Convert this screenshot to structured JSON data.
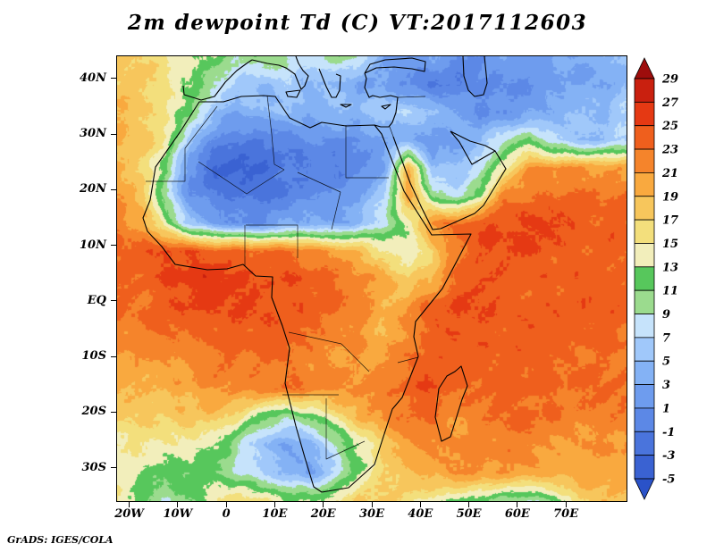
{
  "title": "2m dewpoint Td (C) VT:2017112603",
  "attribution": "GrADS: IGES/COLA",
  "axes": {
    "lat_ticks": [
      {
        "label": "40N",
        "lat": 40
      },
      {
        "label": "30N",
        "lat": 30
      },
      {
        "label": "20N",
        "lat": 20
      },
      {
        "label": "10N",
        "lat": 10
      },
      {
        "label": "EQ",
        "lat": 0
      },
      {
        "label": "10S",
        "lat": -10
      },
      {
        "label": "20S",
        "lat": -20
      },
      {
        "label": "30S",
        "lat": -30
      }
    ],
    "lon_ticks": [
      {
        "label": "20W",
        "lon": -20
      },
      {
        "label": "10W",
        "lon": -10
      },
      {
        "label": "0",
        "lon": 0
      },
      {
        "label": "10E",
        "lon": 10
      },
      {
        "label": "20E",
        "lon": 20
      },
      {
        "label": "30E",
        "lon": 30
      },
      {
        "label": "40E",
        "lon": 40
      },
      {
        "label": "50E",
        "lon": 50
      },
      {
        "label": "60E",
        "lon": 60
      },
      {
        "label": "70E",
        "lon": 70
      }
    ]
  },
  "colorbar": {
    "levels": [
      -5,
      -3,
      -1,
      1,
      3,
      5,
      7,
      9,
      11,
      13,
      15,
      17,
      19,
      21,
      23,
      25,
      27,
      29
    ],
    "colors": [
      "#2a52c8",
      "#3a62d2",
      "#4a74dc",
      "#5c88e6",
      "#6e9cee",
      "#84b2f5",
      "#a0c8fa",
      "#c6e3fb",
      "#9bdb8e",
      "#57c75c",
      "#f2eebb",
      "#f3df7c",
      "#f7c65c",
      "#f9a93f",
      "#f5842b",
      "#ef5f1d",
      "#e53913",
      "#c9200f",
      "#9e0d0c"
    ]
  },
  "chart_data": {
    "type": "heatmap",
    "title": "2m dewpoint Td (C) VT:2017112603",
    "variable": "2m dewpoint temperature",
    "units": "C",
    "valid_time": "2017112603",
    "legend_position": "right",
    "lon_range": [
      -22.5,
      82.5
    ],
    "lat_range": [
      -36,
      44
    ],
    "lons": [
      -22.5,
      -17.5,
      -12.5,
      -7.5,
      -2.5,
      2.5,
      7.5,
      12.5,
      17.5,
      22.5,
      27.5,
      32.5,
      37.5,
      42.5,
      47.5,
      52.5,
      57.5,
      62.5,
      67.5,
      72.5,
      77.5,
      82.5
    ],
    "lats": [
      44,
      39,
      34,
      29,
      24,
      19,
      14,
      9,
      4,
      -1,
      -6,
      -11,
      -16,
      -21,
      -26,
      -31,
      -36
    ],
    "values": [
      [
        18,
        17,
        15,
        13,
        13,
        9,
        11,
        9,
        7,
        11,
        9,
        3,
        1,
        3,
        1,
        1,
        3,
        1,
        3,
        3,
        5,
        5
      ],
      [
        18,
        18,
        16,
        13,
        9,
        7,
        5,
        7,
        5,
        5,
        3,
        3,
        1,
        -1,
        -1,
        1,
        1,
        1,
        3,
        3,
        3,
        5
      ],
      [
        19,
        18,
        15,
        11,
        5,
        3,
        5,
        5,
        3,
        5,
        5,
        7,
        7,
        5,
        3,
        1,
        1,
        3,
        3,
        5,
        5,
        7
      ],
      [
        19,
        18,
        15,
        5,
        1,
        -1,
        -1,
        -1,
        1,
        1,
        1,
        3,
        3,
        1,
        3,
        5,
        9,
        11,
        7,
        5,
        5,
        7
      ],
      [
        20,
        17,
        11,
        1,
        -3,
        -3,
        -3,
        -1,
        -1,
        -1,
        1,
        3,
        19,
        5,
        5,
        9,
        15,
        21,
        21,
        21,
        21,
        21
      ],
      [
        21,
        19,
        9,
        1,
        -1,
        -1,
        -1,
        -1,
        1,
        1,
        3,
        7,
        21,
        11,
        7,
        13,
        23,
        23,
        23,
        23,
        23,
        23
      ],
      [
        22,
        20,
        13,
        5,
        3,
        1,
        1,
        3,
        3,
        3,
        5,
        9,
        13,
        21,
        23,
        25,
        25,
        25,
        25,
        24,
        24,
        24
      ],
      [
        24,
        24,
        25,
        25,
        24,
        24,
        23,
        23,
        22,
        21,
        19,
        15,
        13,
        17,
        23,
        25,
        25,
        25,
        24,
        24,
        24,
        24
      ],
      [
        24,
        24,
        25,
        26,
        26,
        26,
        25,
        25,
        24,
        23,
        22,
        21,
        17,
        19,
        23,
        25,
        25,
        24,
        24,
        24,
        24,
        24
      ],
      [
        23,
        23,
        24,
        25,
        25,
        25,
        25,
        24,
        24,
        23,
        22,
        19,
        21,
        24,
        25,
        25,
        24,
        24,
        24,
        24,
        24,
        24
      ],
      [
        22,
        22,
        23,
        23,
        24,
        24,
        24,
        24,
        23,
        22,
        21,
        19,
        21,
        24,
        25,
        24,
        24,
        24,
        24,
        24,
        24,
        23
      ],
      [
        21,
        21,
        21,
        22,
        23,
        23,
        23,
        23,
        22,
        21,
        21,
        21,
        23,
        25,
        24,
        24,
        24,
        24,
        24,
        23,
        23,
        23
      ],
      [
        19,
        19,
        19,
        20,
        21,
        21,
        22,
        23,
        22,
        21,
        21,
        22,
        24,
        25,
        23,
        23,
        24,
        24,
        23,
        23,
        23,
        23
      ],
      [
        17,
        17,
        17,
        18,
        18,
        15,
        11,
        9,
        11,
        15,
        19,
        21,
        23,
        23,
        21,
        22,
        23,
        23,
        23,
        22,
        22,
        22
      ],
      [
        15,
        15,
        15,
        15,
        13,
        9,
        5,
        3,
        5,
        9,
        13,
        17,
        21,
        22,
        22,
        22,
        22,
        22,
        21,
        21,
        21,
        21
      ],
      [
        14,
        13,
        12,
        12,
        11,
        9,
        7,
        5,
        3,
        7,
        13,
        17,
        19,
        20,
        21,
        21,
        21,
        21,
        20,
        20,
        20,
        20
      ],
      [
        15,
        11,
        9,
        11,
        15,
        16,
        15,
        13,
        13,
        15,
        17,
        17,
        16,
        14,
        13,
        11,
        9,
        9,
        11,
        17,
        18,
        18
      ]
    ]
  }
}
